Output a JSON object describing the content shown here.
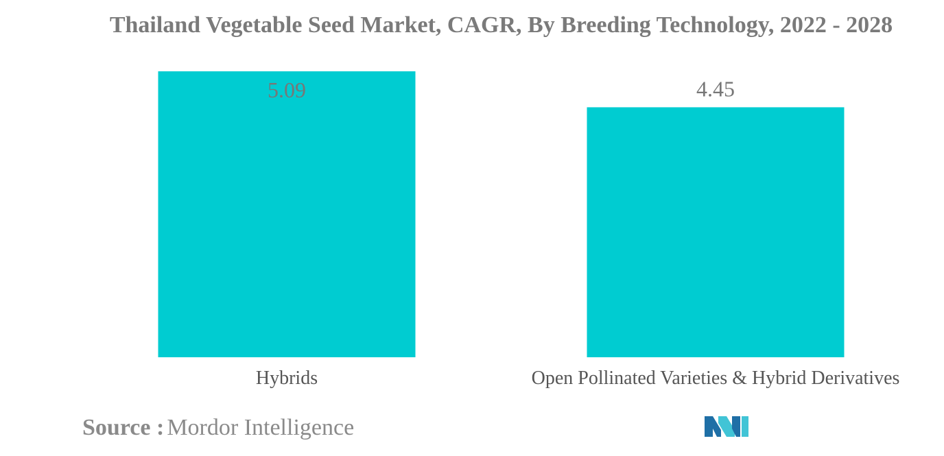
{
  "chart_data": {
    "type": "bar",
    "title": "Thailand Vegetable Seed Market, CAGR, By Breeding Technology, 2022 - 2028",
    "categories": [
      "Hybrids",
      "Open Pollinated Varieties & Hybrid Derivatives"
    ],
    "values": [
      5.09,
      4.45
    ],
    "data_labels": [
      "5.09",
      "4.45"
    ],
    "xlabel": "",
    "ylabel": "",
    "ylim": [
      0,
      5.09
    ],
    "grid": false,
    "legend": "none",
    "bar_color": "#00ccd1",
    "label_color": "#777777"
  },
  "footer": {
    "source_label": "Source :",
    "source_value": "Mordor Intelligence",
    "logo_colors": [
      "#1f6fa6",
      "#41c4d6"
    ]
  }
}
